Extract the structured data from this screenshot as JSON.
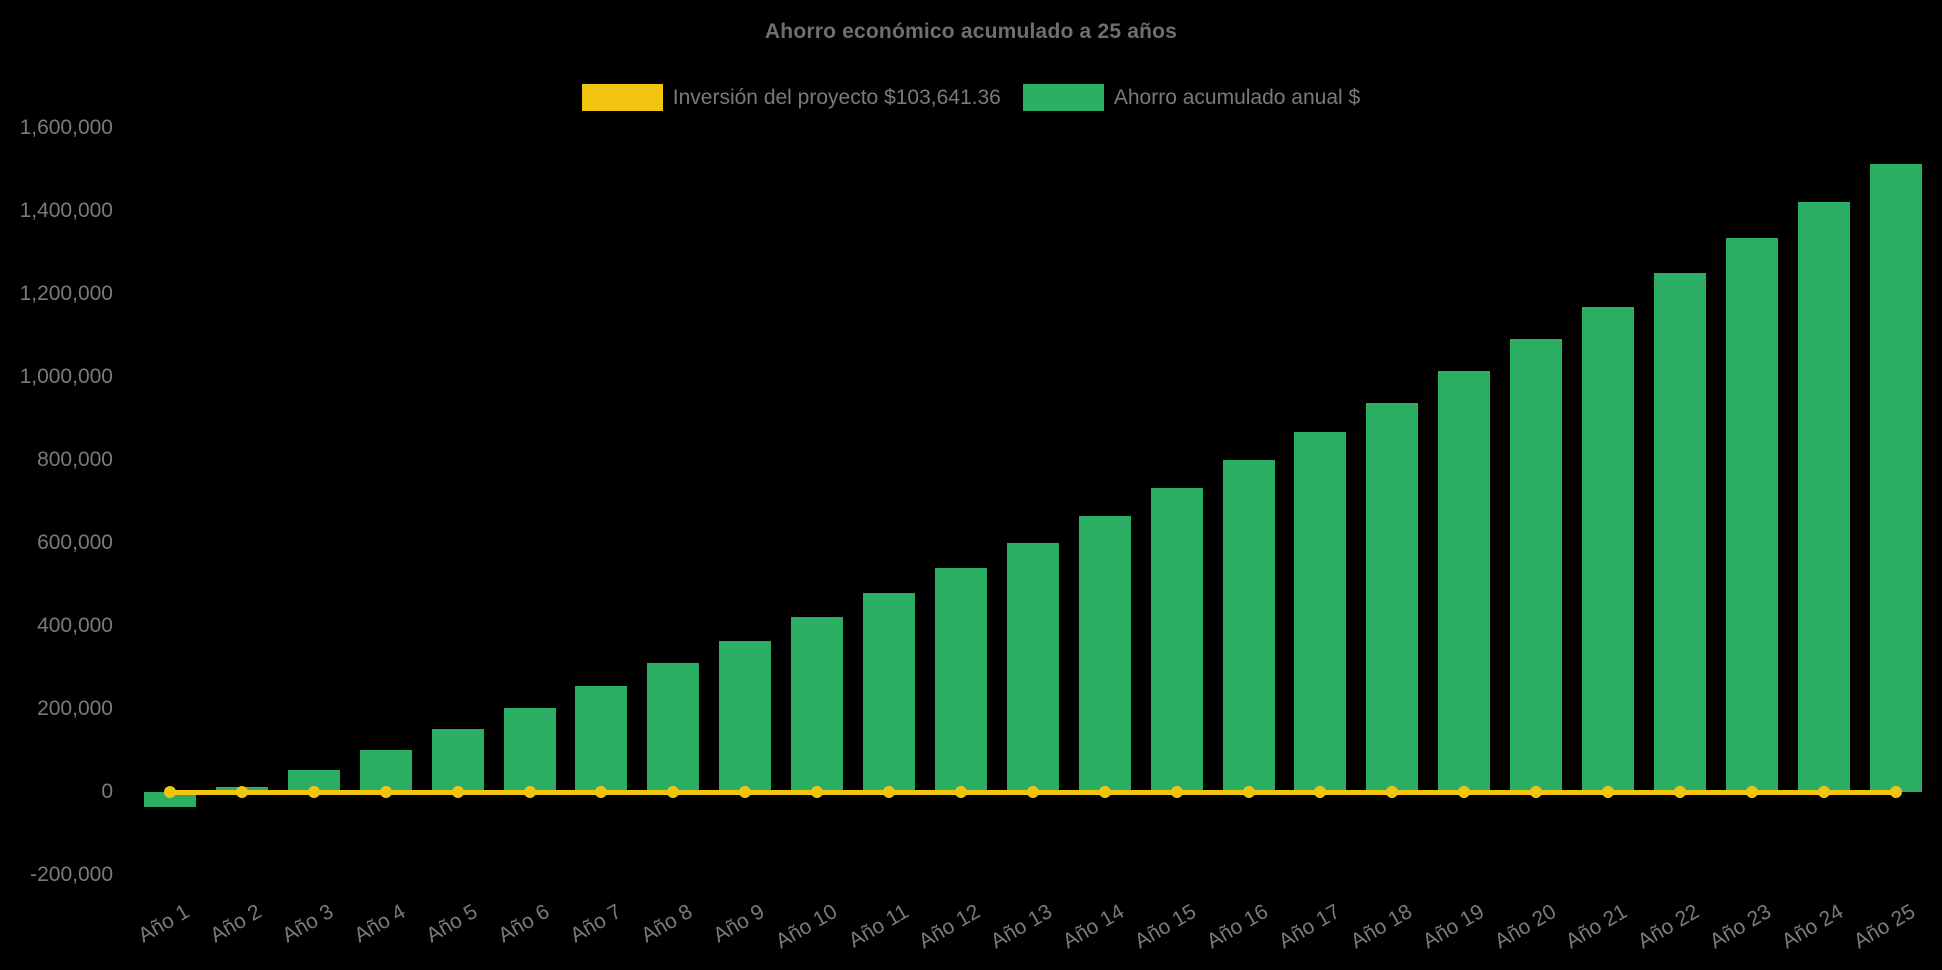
{
  "page": {
    "background": "#000000",
    "text_gray": "#7a7a7a",
    "title_gray": "#6f6f6f"
  },
  "chart_data": {
    "type": "bar",
    "title": "Ahorro económico acumulado a 25 años",
    "xlabel": "",
    "ylabel": "",
    "grid": false,
    "legend_position": "top-center",
    "ylim": [
      -200000,
      1600000
    ],
    "ytick_step": 200000,
    "ytick_labels": [
      "-200,000",
      "0",
      "200,000",
      "400,000",
      "600,000",
      "800,000",
      "1,000,000",
      "1,200,000",
      "1,400,000",
      "1,600,000"
    ],
    "categories": [
      "Año 1",
      "Año 2",
      "Año 3",
      "Año 4",
      "Año 5",
      "Año 6",
      "Año 7",
      "Año 8",
      "Año 9",
      "Año 10",
      "Año 11",
      "Año 12",
      "Año 13",
      "Año 14",
      "Año 15",
      "Año 16",
      "Año 17",
      "Año 18",
      "Año 19",
      "Año 20",
      "Año 21",
      "Año 22",
      "Año 23",
      "Año 24",
      "Año 25"
    ],
    "series": [
      {
        "name": "Inversión del proyecto $103,641.36",
        "type": "line",
        "color": "#F1C40F",
        "investment_amount_label": "$103,641.36",
        "values": [
          0,
          0,
          0,
          0,
          0,
          0,
          0,
          0,
          0,
          0,
          0,
          0,
          0,
          0,
          0,
          0,
          0,
          0,
          0,
          0,
          0,
          0,
          0,
          0,
          0
        ]
      },
      {
        "name": "Ahorro acumulado anual $",
        "type": "bar",
        "color": "#2BAD64",
        "values": [
          -35000,
          12000,
          52000,
          101000,
          152000,
          202000,
          255000,
          310000,
          364000,
          422000,
          480000,
          540000,
          600000,
          665000,
          732000,
          800000,
          868000,
          937000,
          1014000,
          1092000,
          1169000,
          1250000,
          1335000,
          1422000,
          1513000
        ]
      }
    ]
  }
}
